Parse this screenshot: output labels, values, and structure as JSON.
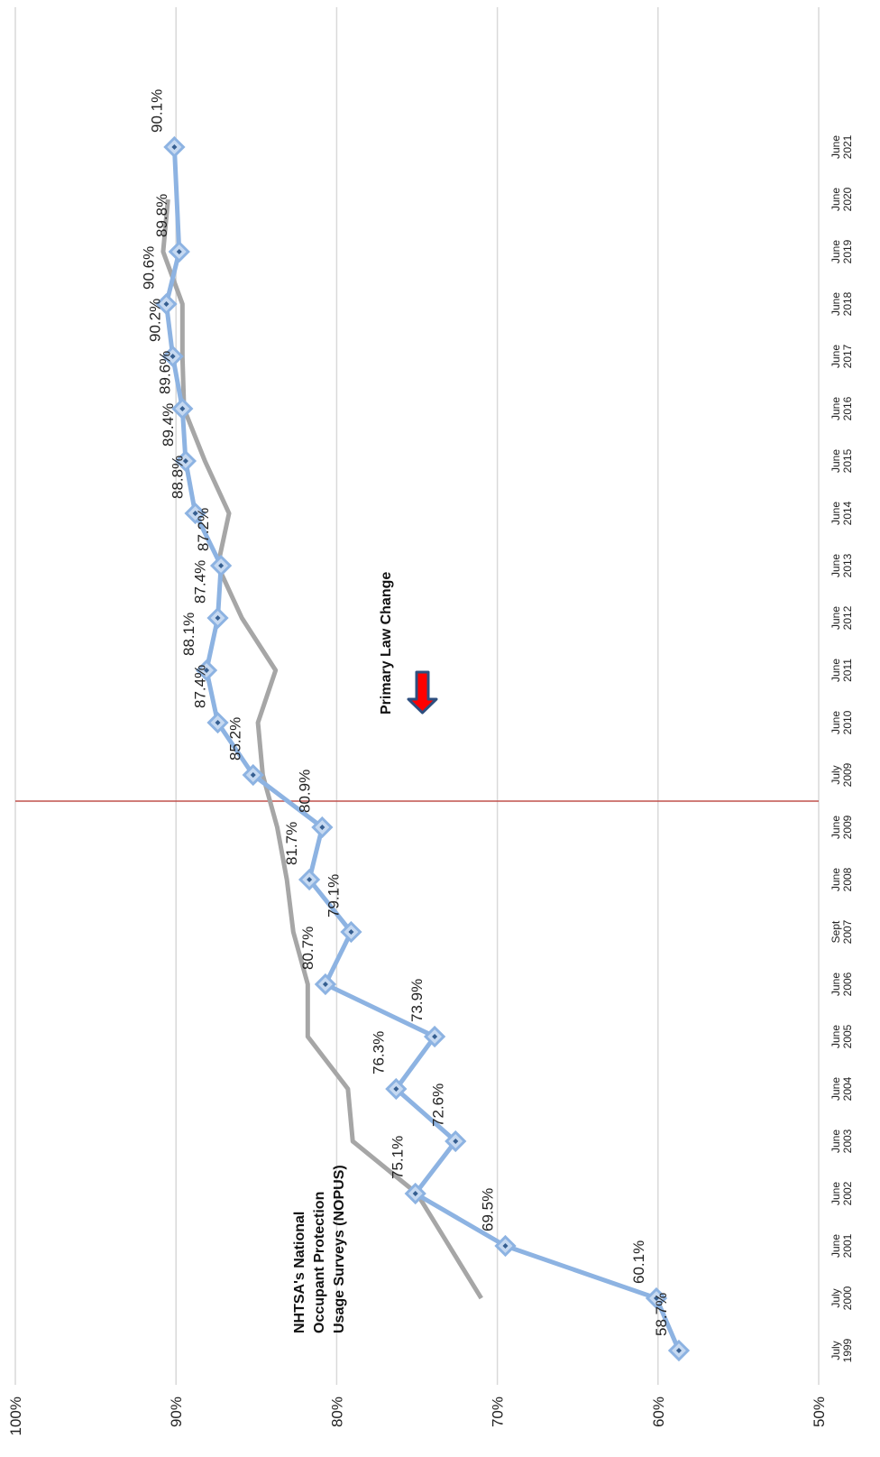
{
  "chart_data": {
    "type": "line",
    "orientation": "rotated-90-clockwise",
    "categories": [
      "July 1999",
      "July 2000",
      "June 2001",
      "June 2002",
      "June 2003",
      "June 2004",
      "June 2005",
      "June 2006",
      "Sept 2007",
      "June 2008",
      "June 2009",
      "July 2009",
      "June 2010",
      "June 2011",
      "June 2012",
      "June 2013",
      "June 2014",
      "June 2015",
      "June 2016",
      "June 2017",
      "June 2018",
      "June 2019",
      "June 2020",
      "June 2021"
    ],
    "category_lines": [
      [
        "July",
        "1999"
      ],
      [
        "July",
        "2000"
      ],
      [
        "June",
        "2001"
      ],
      [
        "June",
        "2002"
      ],
      [
        "June",
        "2003"
      ],
      [
        "June",
        "2004"
      ],
      [
        "June",
        "2005"
      ],
      [
        "June",
        "2006"
      ],
      [
        "Sept",
        "2007"
      ],
      [
        "June",
        "2008"
      ],
      [
        "June",
        "2009"
      ],
      [
        "July",
        "2009"
      ],
      [
        "June",
        "2010"
      ],
      [
        "June",
        "2011"
      ],
      [
        "June",
        "2012"
      ],
      [
        "June",
        "2013"
      ],
      [
        "June",
        "2014"
      ],
      [
        "June",
        "2015"
      ],
      [
        "June",
        "2016"
      ],
      [
        "June",
        "2017"
      ],
      [
        "June",
        "2018"
      ],
      [
        "June",
        "2019"
      ],
      [
        "June",
        "2020"
      ],
      [
        "June",
        "2021"
      ]
    ],
    "y_ticks": [
      "50%",
      "60%",
      "70%",
      "80%",
      "90%",
      "100%"
    ],
    "ylim": [
      50,
      100
    ],
    "grid": true,
    "series": [
      {
        "color": "#8db3e2",
        "marker": "diamond",
        "values": [
          58.7,
          60.1,
          69.5,
          75.1,
          72.6,
          76.3,
          73.9,
          80.7,
          79.1,
          81.7,
          80.9,
          85.2,
          87.4,
          88.1,
          87.4,
          87.2,
          88.8,
          89.4,
          89.6,
          90.2,
          90.6,
          89.8,
          null,
          90.1
        ],
        "labels": [
          "58.7%",
          "60.1%",
          "69.5%",
          "75.1%",
          "72.6%",
          "76.3%",
          "73.9%",
          "80.7%",
          "79.1%",
          "81.7%",
          "80.9%",
          "85.2%",
          "87.4%",
          "88.1%",
          "87.4%",
          "87.2%",
          "88.8%",
          "89.4%",
          "89.6%",
          "90.2%",
          "90.6%",
          "89.8%",
          "",
          "90.1%"
        ]
      },
      {
        "name": "NHTSA's National Occupant Protection Usage Surveys (NOPUS)",
        "color": "#a6a6a6",
        "values": [
          null,
          71,
          73,
          75,
          79,
          79.3,
          81.8,
          81.8,
          82.7,
          83.1,
          83.7,
          84.6,
          84.9,
          83.8,
          85.9,
          87.4,
          86.7,
          88.2,
          89.5,
          89.6,
          89.6,
          90.8,
          90.5,
          null
        ]
      }
    ],
    "annotations": {
      "law_change": "Primary Law Change",
      "law_change_position": "between June 2009 and July 2009",
      "nopus_label_lines": [
        "NHTSA's National",
        "Occupant Protection",
        "Usage Surveys (NOPUS)"
      ]
    },
    "colors": {
      "grid": "#d9d9d9",
      "law_line": "#c0504d",
      "arrow_fill": "#ff0000",
      "arrow_edge": "#2e4f7f"
    }
  }
}
